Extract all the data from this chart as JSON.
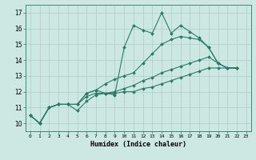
{
  "xlabel": "Humidex (Indice chaleur)",
  "xlim": [
    -0.5,
    23.5
  ],
  "ylim": [
    9.5,
    17.5
  ],
  "xticks": [
    0,
    1,
    2,
    3,
    4,
    5,
    6,
    7,
    8,
    9,
    10,
    11,
    12,
    13,
    14,
    15,
    16,
    17,
    18,
    19,
    20,
    21,
    22,
    23
  ],
  "yticks": [
    10,
    11,
    12,
    13,
    14,
    15,
    16,
    17
  ],
  "background_color": "#cde8e2",
  "grid_color": "#a8cfc8",
  "line_color": "#2a7a6a",
  "series": [
    [
      10.5,
      10.0,
      11.0,
      11.2,
      11.2,
      10.8,
      11.4,
      11.8,
      11.9,
      11.8,
      14.8,
      16.2,
      15.9,
      15.7,
      17.0,
      15.7,
      16.2,
      15.8,
      15.4,
      14.8,
      13.8,
      13.5,
      13.5
    ],
    [
      10.5,
      10.0,
      11.0,
      11.2,
      11.2,
      11.2,
      11.9,
      12.1,
      12.5,
      12.8,
      13.0,
      13.2,
      13.8,
      14.4,
      15.0,
      15.3,
      15.5,
      15.4,
      15.3,
      14.8,
      13.8,
      13.5,
      13.5
    ],
    [
      10.5,
      10.0,
      11.0,
      11.2,
      11.2,
      11.2,
      11.9,
      12.1,
      11.9,
      12.0,
      12.2,
      12.4,
      12.7,
      12.9,
      13.2,
      13.4,
      13.6,
      13.8,
      14.0,
      14.2,
      13.8,
      13.5,
      13.5
    ],
    [
      10.5,
      10.0,
      11.0,
      11.2,
      11.2,
      11.2,
      11.7,
      11.9,
      11.9,
      11.9,
      12.0,
      12.0,
      12.2,
      12.3,
      12.5,
      12.7,
      12.9,
      13.1,
      13.3,
      13.5,
      13.5,
      13.5,
      13.5
    ]
  ]
}
